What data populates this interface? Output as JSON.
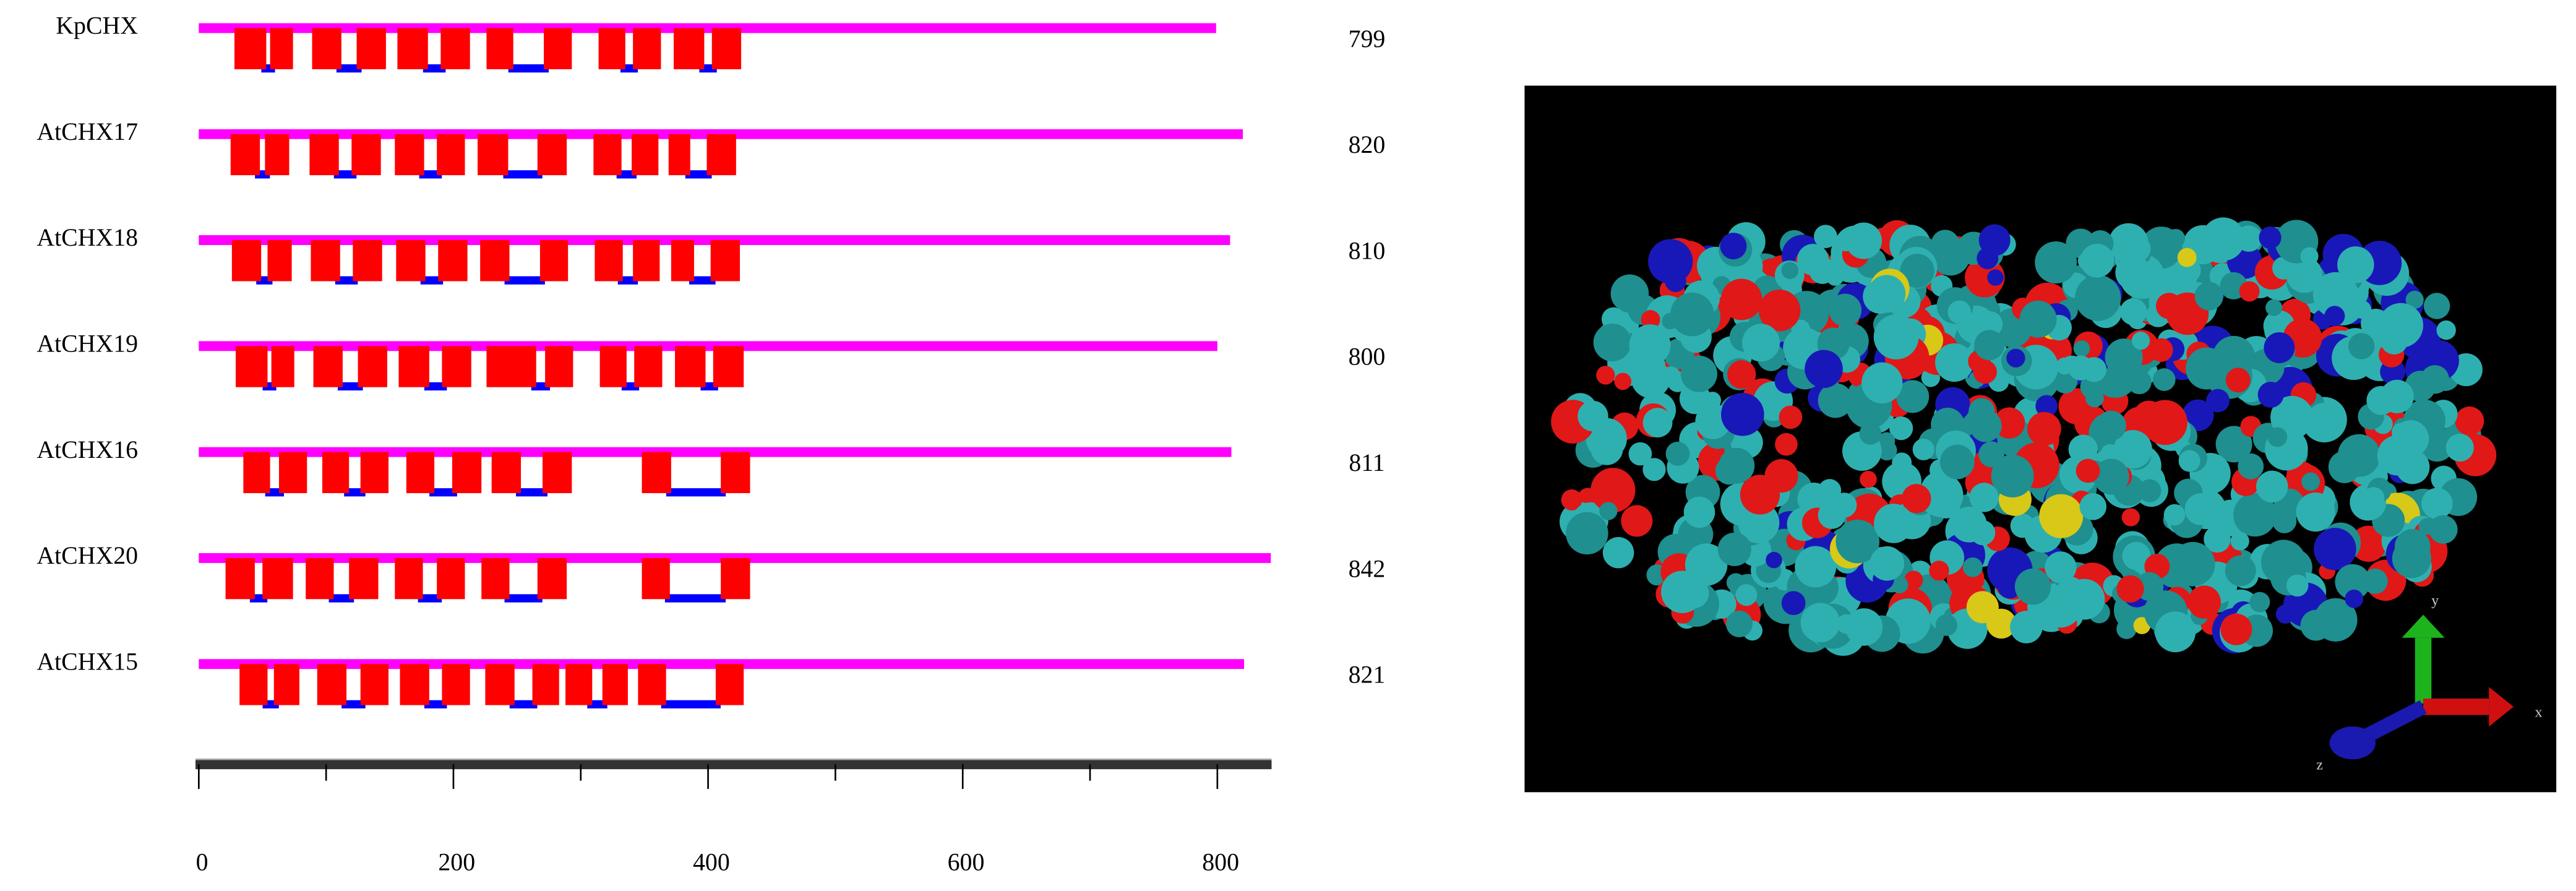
{
  "chart_data": {
    "type": "topology",
    "xlim": [
      0,
      840
    ],
    "xticks": [
      0,
      200,
      400,
      600,
      800
    ],
    "xminorticks": [
      100,
      300,
      500,
      700
    ],
    "colors": {
      "outside": "#ff00ff",
      "helix": "#ff0000",
      "inside": "#0000ff"
    },
    "proteins": [
      {
        "name": "KpCHX",
        "length": 799,
        "helices": [
          [
            28,
            53
          ],
          [
            56,
            74
          ],
          [
            89,
            112
          ],
          [
            124,
            147
          ],
          [
            156,
            180
          ],
          [
            190,
            213
          ],
          [
            226,
            247
          ],
          [
            271,
            293
          ],
          [
            314,
            335
          ],
          [
            341,
            363
          ],
          [
            373,
            397
          ],
          [
            403,
            426
          ]
        ]
      },
      {
        "name": "AtCHX17",
        "length": 820,
        "helices": [
          [
            25,
            48
          ],
          [
            52,
            71
          ],
          [
            87,
            110
          ],
          [
            120,
            143
          ],
          [
            154,
            177
          ],
          [
            187,
            209
          ],
          [
            219,
            243
          ],
          [
            266,
            289
          ],
          [
            310,
            332
          ],
          [
            340,
            361
          ],
          [
            369,
            386
          ],
          [
            399,
            422
          ]
        ]
      },
      {
        "name": "AtCHX18",
        "length": 810,
        "helices": [
          [
            26,
            49
          ],
          [
            54,
            73
          ],
          [
            88,
            111
          ],
          [
            121,
            144
          ],
          [
            155,
            178
          ],
          [
            188,
            211
          ],
          [
            221,
            244
          ],
          [
            268,
            290
          ],
          [
            311,
            333
          ],
          [
            341,
            362
          ],
          [
            371,
            389
          ],
          [
            402,
            425
          ]
        ]
      },
      {
        "name": "AtCHX19",
        "length": 800,
        "helices": [
          [
            29,
            54
          ],
          [
            57,
            75
          ],
          [
            90,
            113
          ],
          [
            125,
            148
          ],
          [
            157,
            181
          ],
          [
            191,
            214
          ],
          [
            226,
            265
          ],
          [
            272,
            294
          ],
          [
            315,
            336
          ],
          [
            342,
            364
          ],
          [
            374,
            398
          ],
          [
            404,
            428
          ]
        ]
      },
      {
        "name": "AtCHX16",
        "length": 811,
        "helices": [
          [
            35,
            56
          ],
          [
            63,
            85
          ],
          [
            97,
            118
          ],
          [
            127,
            149
          ],
          [
            163,
            185
          ],
          [
            199,
            222
          ],
          [
            230,
            253
          ],
          [
            270,
            293
          ],
          [
            348,
            371
          ],
          [
            410,
            433
          ]
        ]
      },
      {
        "name": "AtCHX20",
        "length": 842,
        "helices": [
          [
            21,
            44
          ],
          [
            50,
            74
          ],
          [
            84,
            106
          ],
          [
            118,
            141
          ],
          [
            154,
            176
          ],
          [
            187,
            209
          ],
          [
            222,
            244
          ],
          [
            266,
            289
          ],
          [
            348,
            370
          ],
          [
            410,
            433
          ]
        ]
      },
      {
        "name": "AtCHX15",
        "length": 821,
        "helices": [
          [
            32,
            54
          ],
          [
            59,
            79
          ],
          [
            93,
            116
          ],
          [
            127,
            149
          ],
          [
            158,
            181
          ],
          [
            191,
            213
          ],
          [
            225,
            248
          ],
          [
            262,
            283
          ],
          [
            288,
            309
          ],
          [
            317,
            337
          ],
          [
            345,
            367
          ],
          [
            406,
            428
          ]
        ]
      }
    ],
    "structure_axes": [
      "x",
      "y",
      "z"
    ]
  }
}
